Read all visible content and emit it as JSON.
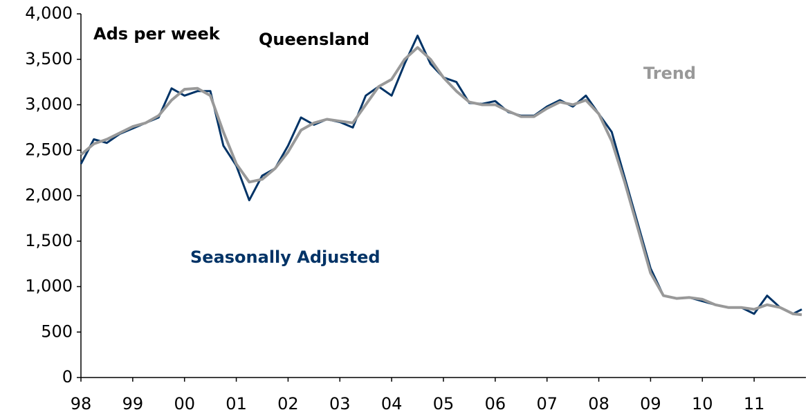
{
  "chart_data": {
    "type": "line",
    "annotations": [
      {
        "text": "Ads per week",
        "color": "#000000"
      },
      {
        "text": "Queensland",
        "color": "#000000"
      },
      {
        "text": "Trend",
        "color": "#999999"
      },
      {
        "text": "Seasonally Adjusted",
        "color": "#003366"
      }
    ],
    "x": [
      1998.0,
      1998.25,
      1998.5,
      1998.75,
      1999.0,
      1999.25,
      1999.5,
      1999.75,
      2000.0,
      2000.25,
      2000.5,
      2000.75,
      2001.0,
      2001.25,
      2001.5,
      2001.75,
      2002.0,
      2002.25,
      2002.5,
      2002.75,
      2003.0,
      2003.25,
      2003.5,
      2003.75,
      2004.0,
      2004.25,
      2004.5,
      2004.75,
      2005.0,
      2005.25,
      2005.5,
      2005.75,
      2006.0,
      2006.25,
      2006.5,
      2006.75,
      2007.0,
      2007.25,
      2007.5,
      2007.75,
      2008.0,
      2008.25,
      2008.5,
      2008.75,
      2009.0,
      2009.25,
      2009.5,
      2009.75,
      2010.0,
      2010.25,
      2010.5,
      2010.75,
      2011.0,
      2011.25,
      2011.5,
      2011.75,
      2011.92
    ],
    "series": [
      {
        "name": "Seasonally Adjusted",
        "color": "#003366",
        "width": 3,
        "values": [
          2350,
          2620,
          2580,
          2680,
          2740,
          2800,
          2860,
          3180,
          3100,
          3150,
          3150,
          2550,
          2330,
          1950,
          2220,
          2300,
          2550,
          2860,
          2780,
          2840,
          2810,
          2750,
          3100,
          3200,
          3100,
          3450,
          3760,
          3450,
          3300,
          3250,
          3020,
          3010,
          3040,
          2920,
          2880,
          2880,
          2980,
          3050,
          2980,
          3100,
          2900,
          2700,
          2200,
          1700,
          1200,
          900,
          870,
          880,
          840,
          800,
          770,
          770,
          700,
          900,
          770,
          700,
          750
        ]
      },
      {
        "name": "Trend",
        "color": "#999999",
        "width": 4,
        "values": [
          2450,
          2570,
          2620,
          2690,
          2760,
          2800,
          2880,
          3050,
          3170,
          3180,
          3100,
          2700,
          2350,
          2150,
          2180,
          2300,
          2480,
          2720,
          2800,
          2840,
          2820,
          2800,
          3000,
          3200,
          3280,
          3500,
          3630,
          3500,
          3300,
          3150,
          3030,
          3000,
          3000,
          2930,
          2870,
          2870,
          2960,
          3030,
          3000,
          3050,
          2900,
          2600,
          2150,
          1650,
          1150,
          900,
          870,
          880,
          860,
          800,
          770,
          770,
          750,
          800,
          770,
          700,
          690
        ]
      }
    ],
    "xlim": [
      1998,
      2012
    ],
    "xticks": [
      {
        "value": 1998,
        "label": "98"
      },
      {
        "value": 1999,
        "label": "99"
      },
      {
        "value": 2000,
        "label": "00"
      },
      {
        "value": 2001,
        "label": "01"
      },
      {
        "value": 2002,
        "label": "02"
      },
      {
        "value": 2003,
        "label": "03"
      },
      {
        "value": 2004,
        "label": "04"
      },
      {
        "value": 2005,
        "label": "05"
      },
      {
        "value": 2006,
        "label": "06"
      },
      {
        "value": 2007,
        "label": "07"
      },
      {
        "value": 2008,
        "label": "08"
      },
      {
        "value": 2009,
        "label": "09"
      },
      {
        "value": 2010,
        "label": "10"
      },
      {
        "value": 2011,
        "label": "11"
      }
    ],
    "ylim": [
      0,
      4000
    ],
    "yticks": [
      0,
      500,
      {
        "value": 1000,
        "label": "1,000"
      },
      {
        "value": 1500,
        "label": "1,500"
      },
      {
        "value": 2000,
        "label": "2,000"
      },
      {
        "value": 2500,
        "label": "2,500"
      },
      {
        "value": 3000,
        "label": "3,000"
      },
      {
        "value": 3500,
        "label": "3,500"
      },
      {
        "value": 4000,
        "label": "4,000"
      }
    ],
    "grid": false
  }
}
